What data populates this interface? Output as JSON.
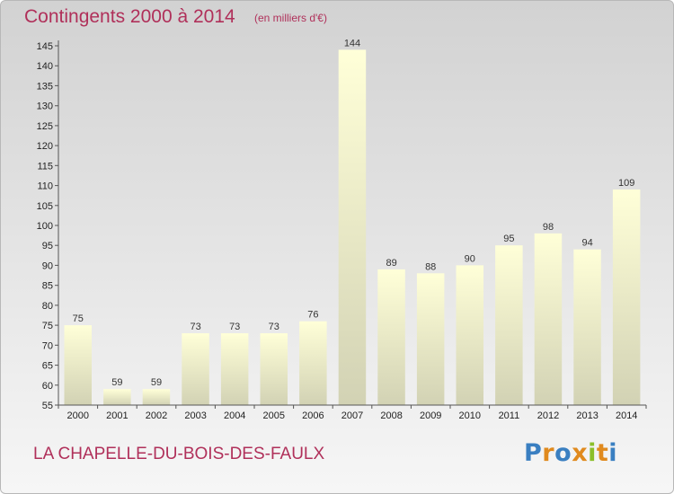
{
  "header": {
    "title": "Contingents 2000 à 2014",
    "subtitle": "(en milliers d'€)"
  },
  "footer": {
    "commune": "LA CHAPELLE-DU-BOIS-DES-FAULX",
    "logo_text": "Proxiti",
    "logo_colors": [
      "#3a7fc1",
      "#e08a1e",
      "#3a7fc1",
      "#e08a1e",
      "#8bbf2a",
      "#e08a1e",
      "#3a7fc1"
    ]
  },
  "colors": {
    "bar_top": "#ffffd8",
    "bar_bottom": "#d2d2b4",
    "title": "#b0305a"
  },
  "chart_data": {
    "type": "bar",
    "title": "Contingents 2000 à 2014",
    "subtitle": "(en milliers d'€)",
    "categories": [
      "2000",
      "2001",
      "2002",
      "2003",
      "2004",
      "2005",
      "2006",
      "2007",
      "2008",
      "2009",
      "2010",
      "2011",
      "2012",
      "2013",
      "2014"
    ],
    "values": [
      75,
      59,
      59,
      73,
      73,
      73,
      76,
      144,
      89,
      88,
      90,
      95,
      98,
      94,
      109
    ],
    "ylim": [
      55,
      145
    ],
    "yticks": [
      55,
      60,
      65,
      70,
      75,
      80,
      85,
      90,
      95,
      100,
      105,
      110,
      115,
      120,
      125,
      130,
      135,
      140,
      145
    ],
    "data_labels": true,
    "grid": false,
    "xlabel": "",
    "ylabel": ""
  }
}
